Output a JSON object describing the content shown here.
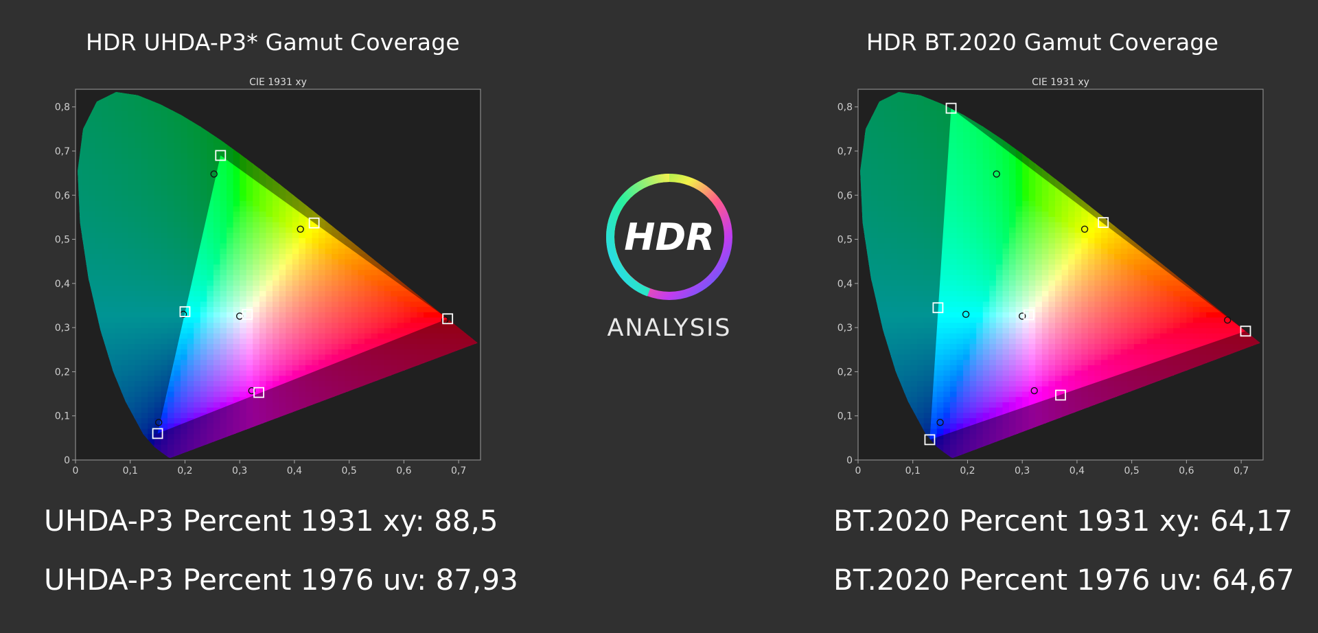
{
  "logo": {
    "mark": "HDR",
    "word": "ANALYSIS",
    "icon": "hdr-ring-logo-icon"
  },
  "chart_data": [
    {
      "type": "scatter",
      "heading": "HDR UHDA-P3* Gamut Coverage",
      "title": "CIE 1931 xy",
      "xlabel": "",
      "ylabel": "",
      "xlim": [
        0,
        0.74
      ],
      "ylim": [
        0,
        0.84
      ],
      "xticks": [
        "0",
        "0,1",
        "0,2",
        "0,3",
        "0,4",
        "0,5",
        "0,6",
        "0,7"
      ],
      "yticks": [
        "0",
        "0,1",
        "0,2",
        "0,3",
        "0,4",
        "0,5",
        "0,6",
        "0,7",
        "0,8"
      ],
      "target_points": [
        {
          "x": 0.265,
          "y": 0.69
        },
        {
          "x": 0.436,
          "y": 0.537
        },
        {
          "x": 0.68,
          "y": 0.32
        },
        {
          "x": 0.2,
          "y": 0.336
        },
        {
          "x": 0.314,
          "y": 0.33
        },
        {
          "x": 0.335,
          "y": 0.153
        },
        {
          "x": 0.15,
          "y": 0.06
        }
      ],
      "measured_points": [
        {
          "x": 0.253,
          "y": 0.648
        },
        {
          "x": 0.411,
          "y": 0.523
        },
        {
          "x": 0.675,
          "y": 0.317
        },
        {
          "x": 0.197,
          "y": 0.33
        },
        {
          "x": 0.3,
          "y": 0.326
        },
        {
          "x": 0.322,
          "y": 0.157
        },
        {
          "x": 0.152,
          "y": 0.085
        }
      ],
      "stats": [
        "UHDA-P3 Percent 1931 xy: 88,5",
        "UHDA-P3 Percent 1976 uv: 87,93"
      ]
    },
    {
      "type": "scatter",
      "heading": "HDR BT.2020  Gamut Coverage",
      "title": "CIE 1931 xy",
      "xlabel": "",
      "ylabel": "",
      "xlim": [
        0,
        0.74
      ],
      "ylim": [
        0,
        0.84
      ],
      "xticks": [
        "0",
        "0,1",
        "0,2",
        "0,3",
        "0,4",
        "0,5",
        "0,6",
        "0,7"
      ],
      "yticks": [
        "0",
        "0,1",
        "0,2",
        "0,3",
        "0,4",
        "0,5",
        "0,6",
        "0,7",
        "0,8"
      ],
      "target_points": [
        {
          "x": 0.17,
          "y": 0.797
        },
        {
          "x": 0.448,
          "y": 0.538
        },
        {
          "x": 0.708,
          "y": 0.292
        },
        {
          "x": 0.146,
          "y": 0.345
        },
        {
          "x": 0.312,
          "y": 0.329
        },
        {
          "x": 0.37,
          "y": 0.147
        },
        {
          "x": 0.131,
          "y": 0.046
        }
      ],
      "measured_points": [
        {
          "x": 0.253,
          "y": 0.648
        },
        {
          "x": 0.414,
          "y": 0.523
        },
        {
          "x": 0.675,
          "y": 0.317
        },
        {
          "x": 0.197,
          "y": 0.33
        },
        {
          "x": 0.3,
          "y": 0.326
        },
        {
          "x": 0.322,
          "y": 0.157
        },
        {
          "x": 0.15,
          "y": 0.085
        }
      ],
      "stats": [
        "BT.2020 Percent 1931 xy: 64,17",
        "BT.2020 Percent 1976 uv: 64,67"
      ]
    }
  ]
}
